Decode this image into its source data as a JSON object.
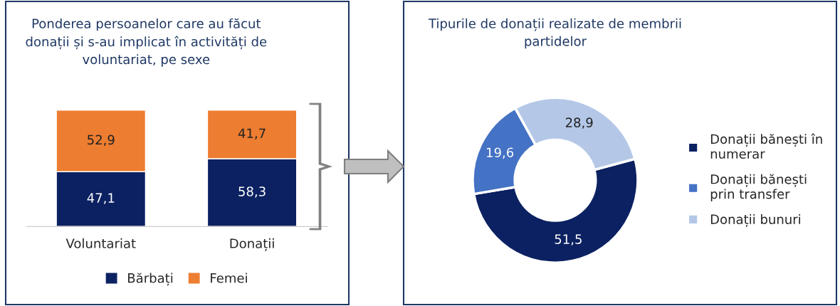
{
  "chart_data": [
    {
      "type": "bar",
      "title": "Ponderea persoanelor care au făcut\ndonații și s-au implicat în activități de\nvoluntariat, pe sexe",
      "categories": [
        "Voluntariat",
        "Donații"
      ],
      "stacked": true,
      "legend": "bottom",
      "series": [
        {
          "name": "Bărbați",
          "color": "#0b2161",
          "values": [
            47.1,
            58.3
          ],
          "value_labels": [
            "47,1",
            "58,3"
          ]
        },
        {
          "name": "Femei",
          "color": "#ed7d31",
          "values": [
            52.9,
            41.7
          ],
          "value_labels": [
            "52,9",
            "41,7"
          ]
        }
      ]
    },
    {
      "type": "donut",
      "title": "Tipurile de donații realizate de membrii\npartidelor",
      "legend": "right",
      "categories": [
        "Donații bănești în\nnumerar",
        "Donații bănești\nprin transfer",
        "Donații bunuri"
      ],
      "values": [
        51.5,
        19.6,
        28.9
      ],
      "value_labels": [
        "51,5",
        "19,6",
        "28,9"
      ],
      "colors": [
        "#0b2161",
        "#4472c4",
        "#b4c7e7"
      ]
    }
  ]
}
